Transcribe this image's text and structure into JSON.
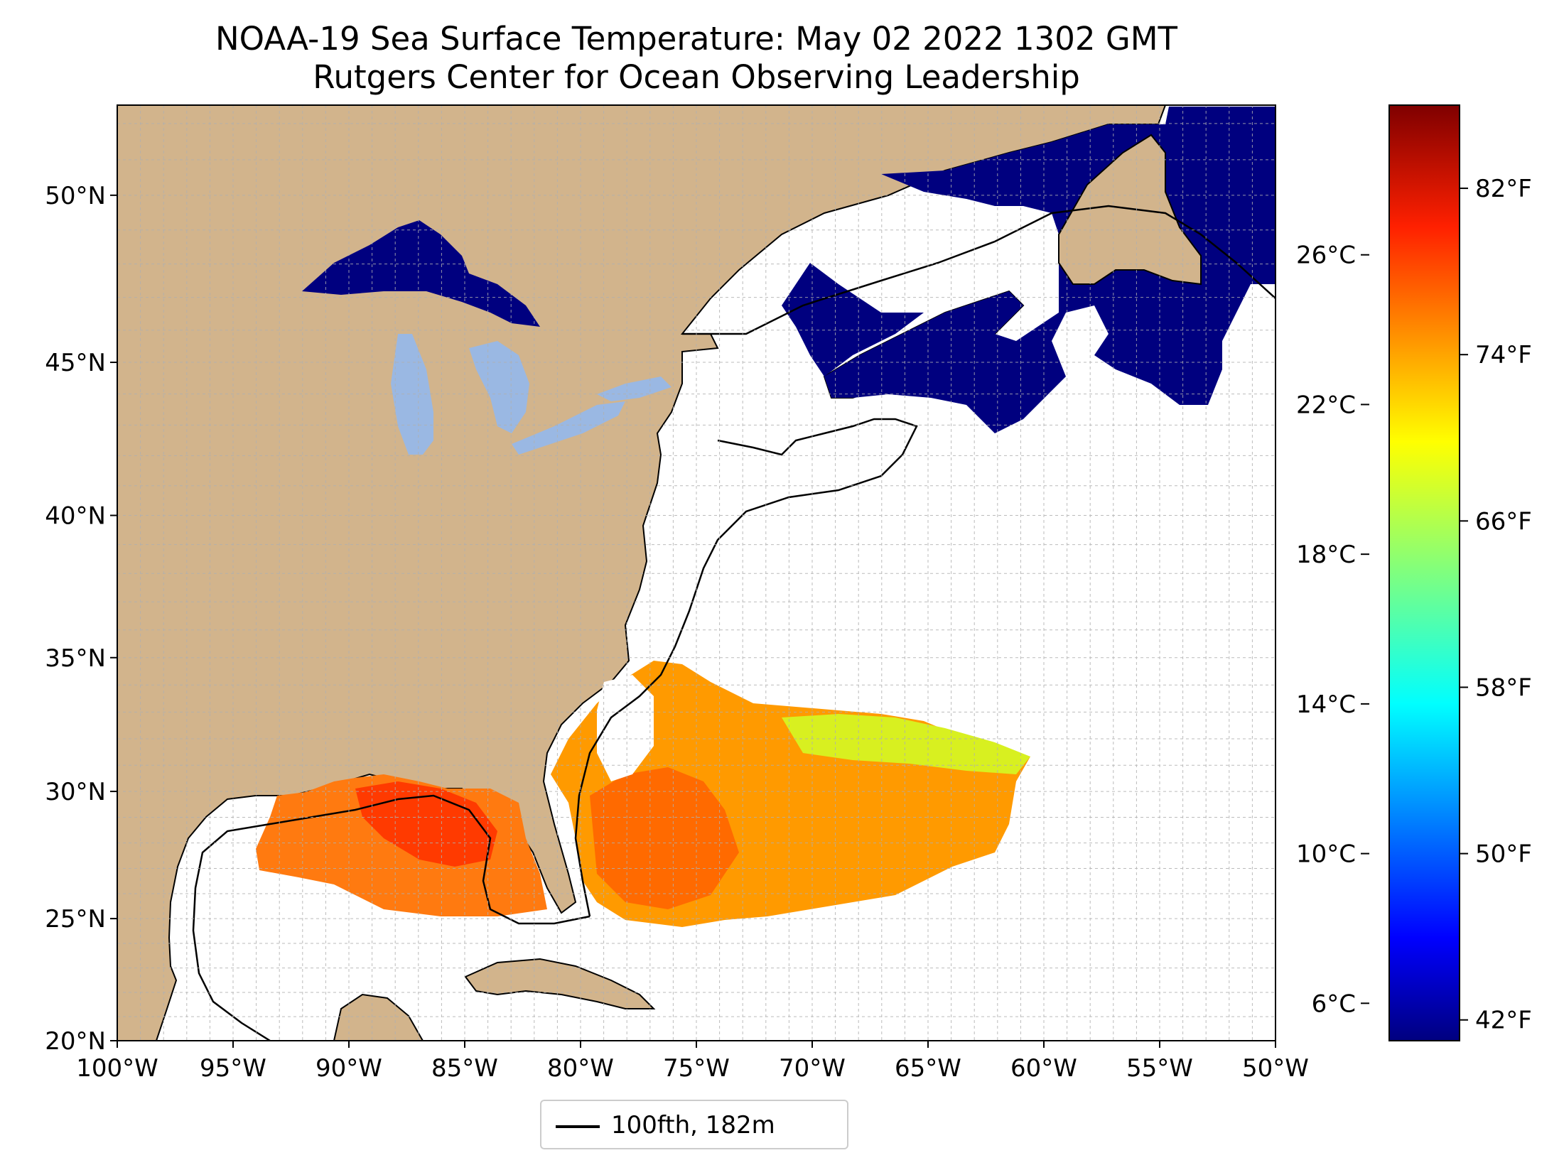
{
  "title": {
    "line1": "NOAA-19 Sea Surface Temperature: May 02 2022 1302 GMT",
    "line2": "Rutgers Center for Ocean Observing Leadership"
  },
  "map": {
    "extent": {
      "lon_min": -100,
      "lon_max": -50,
      "lat_min": 20,
      "lat_max": 52.5
    },
    "grid": true,
    "grid_step_deg": 1,
    "colors": {
      "land": "#d2b48c",
      "lakes": "#9ab8e3",
      "ocean_nodata": "#ffffff",
      "cold_sst": "#00007f"
    },
    "lat_labels": [
      "20°N",
      "25°N",
      "30°N",
      "35°N",
      "40°N",
      "45°N",
      "50°N"
    ],
    "lon_labels": [
      "100°W",
      "95°W",
      "90°W",
      "85°W",
      "80°W",
      "75°W",
      "70°W",
      "65°W",
      "60°W",
      "55°W",
      "50°W"
    ]
  },
  "colorbar": {
    "colormap": "jet",
    "range_c": [
      5.0,
      30.0
    ],
    "celsius_labels": [
      "6°C",
      "10°C",
      "14°C",
      "18°C",
      "22°C",
      "26°C"
    ],
    "fahrenheit_labels": [
      "42°F",
      "50°F",
      "58°F",
      "66°F",
      "74°F",
      "82°F"
    ],
    "stops": [
      "#00007f",
      "#0000ff",
      "#007fff",
      "#00ffff",
      "#7fff7f",
      "#ffff00",
      "#ff7f00",
      "#ff0000",
      "#7f0000"
    ]
  },
  "legend": {
    "label": "100fth, 182m",
    "placement": "bottom-center"
  }
}
